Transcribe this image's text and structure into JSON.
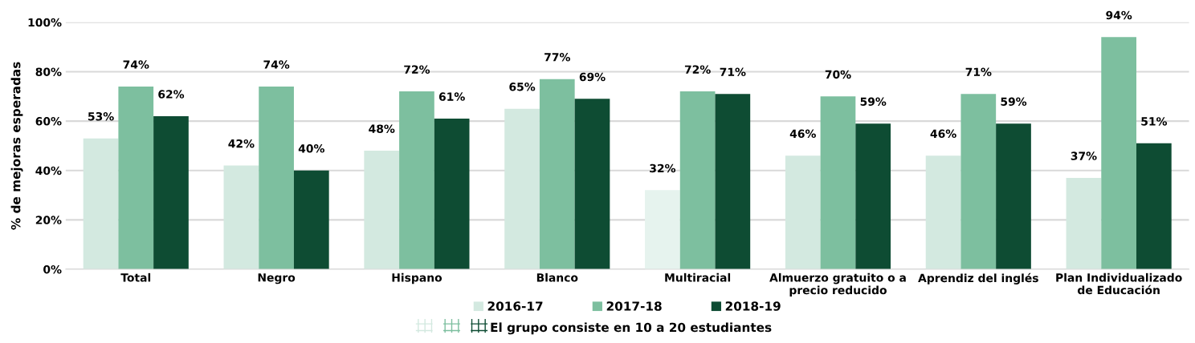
{
  "chart_data": {
    "type": "bar",
    "ylabel": "% de mejoras esperadas",
    "categories": [
      "Total",
      "Negro",
      "Hispano",
      "Blanco",
      "Multiracial",
      "Almuerzo gratuito o a\nprecio reducido",
      "Aprendiz del inglés",
      "Plan Individualizado\nde Educación"
    ],
    "series": [
      {
        "name": "2016-17",
        "color": "#d3e9e0",
        "colors": [
          "#d3e9e0",
          "#d3e9e0",
          "#d3e9e0",
          "#d3e9e0",
          "#e6f3ee",
          "#d3e9e0",
          "#d3e9e0",
          "#d3e9e0"
        ],
        "values": [
          53,
          42,
          48,
          65,
          32,
          46,
          46,
          37
        ],
        "value_labels": [
          "53%",
          "42%",
          "48%",
          "65%",
          "32%",
          "46%",
          "46%",
          "37%"
        ]
      },
      {
        "name": "2017-18",
        "color": "#7dbf9f",
        "values": [
          74,
          74,
          72,
          77,
          72,
          70,
          71,
          94
        ],
        "value_labels": [
          "74%",
          "74%",
          "72%",
          "77%",
          "72%",
          "70%",
          "71%",
          "94%"
        ]
      },
      {
        "name": "2018-19",
        "color": "#0e4c33",
        "values": [
          62,
          40,
          61,
          69,
          71,
          59,
          59,
          51
        ],
        "value_labels": [
          "62%",
          "40%",
          "61%",
          "69%",
          "71%",
          "59%",
          "59%",
          "51%"
        ]
      }
    ],
    "ylim": [
      0,
      100
    ],
    "yticks": [
      {
        "value": 0,
        "label": "0%"
      },
      {
        "value": 20,
        "label": "20%"
      },
      {
        "value": 40,
        "label": "40%"
      },
      {
        "value": 60,
        "label": "60%"
      },
      {
        "value": 80,
        "label": "80%"
      },
      {
        "value": 100,
        "label": "100%"
      }
    ],
    "grid": "y",
    "legend": "bottom",
    "annotations": [
      "El grupo consiste en 10 a 20 estudiantes"
    ]
  }
}
